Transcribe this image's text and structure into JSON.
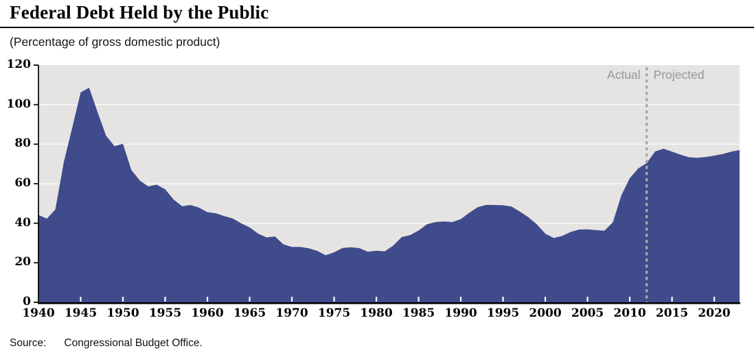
{
  "chart": {
    "title": "Federal Debt Held by the Public",
    "subtitle": "(Percentage of gross domestic product)",
    "actual_label": "Actual",
    "projected_label": "Projected",
    "source_label": "Source:",
    "source_text": "Congressional Budget Office."
  },
  "chart_data": {
    "type": "area",
    "title": "Federal Debt Held by the Public",
    "ylabel": "Percentage of gross domestic product",
    "xlabel": "",
    "grid": true,
    "legend_position": "none",
    "xlim": [
      1940,
      2023
    ],
    "ylim": [
      0,
      120
    ],
    "yticks": [
      0,
      20,
      40,
      60,
      80,
      100,
      120
    ],
    "xticks": [
      1940,
      1945,
      1950,
      1955,
      1960,
      1965,
      1970,
      1975,
      1980,
      1985,
      1990,
      1995,
      2000,
      2005,
      2010,
      2015,
      2020
    ],
    "divider_year": 2012,
    "actual_years": [
      1940,
      2012
    ],
    "projected_years": [
      2013,
      2023
    ],
    "x": [
      1940,
      1941,
      1942,
      1943,
      1944,
      1945,
      1946,
      1947,
      1948,
      1949,
      1950,
      1951,
      1952,
      1953,
      1954,
      1955,
      1956,
      1957,
      1958,
      1959,
      1960,
      1961,
      1962,
      1963,
      1964,
      1965,
      1966,
      1967,
      1968,
      1969,
      1970,
      1971,
      1972,
      1973,
      1974,
      1975,
      1976,
      1977,
      1978,
      1979,
      1980,
      1981,
      1982,
      1983,
      1984,
      1985,
      1986,
      1987,
      1988,
      1989,
      1990,
      1991,
      1992,
      1993,
      1994,
      1995,
      1996,
      1997,
      1998,
      1999,
      2000,
      2001,
      2002,
      2003,
      2004,
      2005,
      2006,
      2007,
      2008,
      2009,
      2010,
      2011,
      2012,
      2013,
      2014,
      2015,
      2016,
      2017,
      2018,
      2019,
      2020,
      2021,
      2022,
      2023
    ],
    "values": [
      44.2,
      42.3,
      47.0,
      70.9,
      88.3,
      106.2,
      108.6,
      96.2,
      84.3,
      79.0,
      80.2,
      66.9,
      61.6,
      58.6,
      59.5,
      57.2,
      52.0,
      48.6,
      49.2,
      47.9,
      45.6,
      45.0,
      43.6,
      42.4,
      40.0,
      37.9,
      34.8,
      32.8,
      33.3,
      29.3,
      28.0,
      28.0,
      27.3,
      26.0,
      23.8,
      25.3,
      27.5,
      27.8,
      27.4,
      25.6,
      26.1,
      25.8,
      28.7,
      33.0,
      34.0,
      36.3,
      39.5,
      40.6,
      40.9,
      40.6,
      42.1,
      45.3,
      48.1,
      49.3,
      49.2,
      49.1,
      48.4,
      45.9,
      43.0,
      39.4,
      34.7,
      32.5,
      33.6,
      35.6,
      36.8,
      36.9,
      36.5,
      36.2,
      40.5,
      54.1,
      62.8,
      67.7,
      70.4,
      76.3,
      77.7,
      76.2,
      74.7,
      73.4,
      73.1,
      73.5,
      74.2,
      75.0,
      76.2,
      77.0
    ],
    "colors": {
      "area_fill": "#404b8c",
      "plot_bg": "#e5e4e2",
      "gridline": "#ffffff",
      "axis": "#000000",
      "divider": "#a8a8a8",
      "annotation_text": "#979797",
      "x_tick_mark": "#ffffff"
    }
  }
}
